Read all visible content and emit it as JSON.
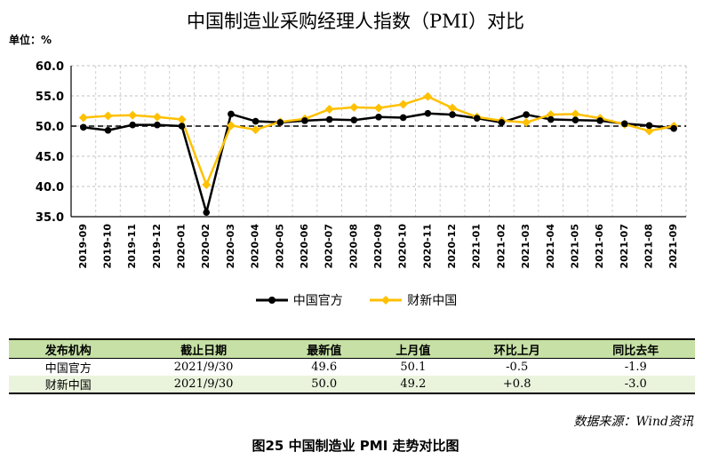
{
  "chart_data": {
    "type": "line",
    "title": "中国制造业采购经理人指数（PMI）对比",
    "unit_label": "单位：%",
    "x": [
      "2019-09",
      "2019-10",
      "2019-11",
      "2019-12",
      "2020-01",
      "2020-02",
      "2020-03",
      "2020-04",
      "2020-05",
      "2020-06",
      "2020-07",
      "2020-08",
      "2020-09",
      "2020-10",
      "2020-11",
      "2020-12",
      "2021-01",
      "2021-02",
      "2021-03",
      "2021-04",
      "2021-05",
      "2021-06",
      "2021-07",
      "2021-08",
      "2021-09"
    ],
    "y_ticks": [
      "60.0",
      "55.0",
      "50.0",
      "45.0",
      "40.0",
      "35.0"
    ],
    "ylim": [
      35,
      60
    ],
    "reference_line": 50,
    "grid": true,
    "legend_position": "bottom",
    "series": [
      {
        "name": "中国官方",
        "color": "#000000",
        "values": [
          49.8,
          49.3,
          50.2,
          50.2,
          50.0,
          35.7,
          52.0,
          50.8,
          50.6,
          50.9,
          51.1,
          51.0,
          51.5,
          51.4,
          52.1,
          51.9,
          51.3,
          50.6,
          51.9,
          51.1,
          51.0,
          50.9,
          50.4,
          50.1,
          49.6
        ]
      },
      {
        "name": "财新中国",
        "color": "#ffc000",
        "values": [
          51.4,
          51.7,
          51.8,
          51.5,
          51.1,
          40.3,
          50.1,
          49.4,
          50.7,
          51.2,
          52.8,
          53.1,
          53.0,
          53.6,
          54.9,
          53.0,
          51.5,
          50.9,
          50.6,
          51.9,
          52.0,
          51.3,
          50.3,
          49.2,
          50.0
        ]
      }
    ]
  },
  "table": {
    "headers": [
      "发布机构",
      "截止日期",
      "最新值",
      "上月值",
      "环比上月",
      "同比去年"
    ],
    "rows": [
      [
        "中国官方",
        "2021/9/30",
        "49.6",
        "50.1",
        "-0.5",
        "-1.9"
      ],
      [
        "财新中国",
        "2021/9/30",
        "50.0",
        "49.2",
        "+0.8",
        "-3.0"
      ]
    ]
  },
  "source": "数据来源：Wind资讯",
  "caption": "图25    中国制造业 PMI 走势对比图"
}
